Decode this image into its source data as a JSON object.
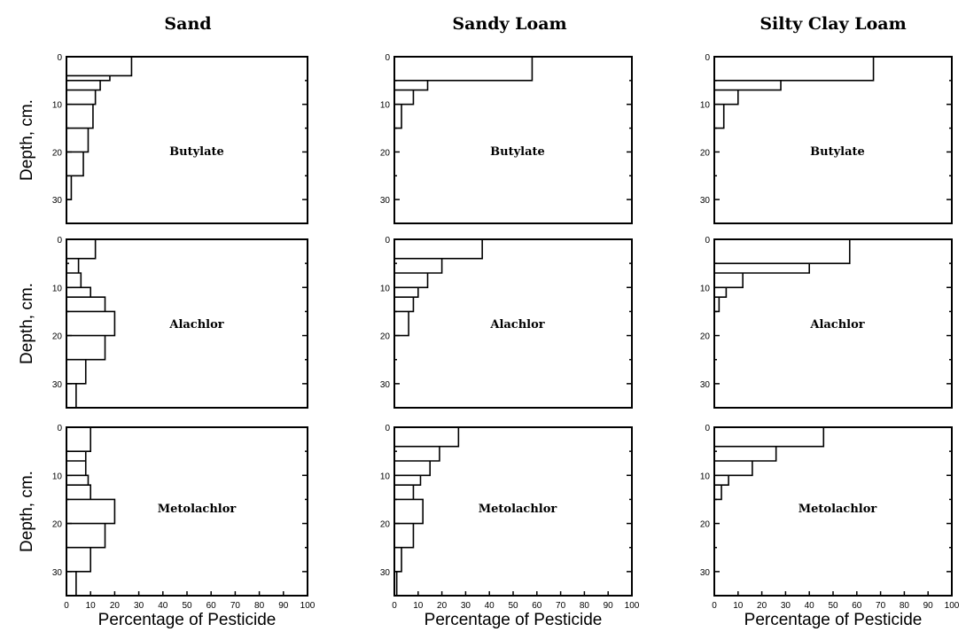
{
  "figure": {
    "y_axis_label": "Depth, cm.",
    "x_axis_label": "Percentage of Pesticide"
  },
  "chart_data": [
    {
      "type": "line",
      "soil": "Sand",
      "pesticide": "Butylate",
      "xlim": [
        0,
        100
      ],
      "ylim": [
        0,
        35
      ],
      "ylabel": "Depth, cm.",
      "xlabel": "",
      "xticks": [],
      "yticks": [
        0,
        10,
        20,
        30
      ],
      "depths": [
        0,
        4,
        5,
        7,
        10,
        15,
        20,
        25,
        30,
        35
      ],
      "values": [
        27,
        18,
        14,
        12,
        11,
        9,
        7,
        2,
        0
      ]
    },
    {
      "type": "line",
      "soil": "Sandy Loam",
      "pesticide": "Butylate",
      "xlim": [
        0,
        100
      ],
      "ylim": [
        0,
        35
      ],
      "ylabel": "",
      "xlabel": "",
      "xticks": [],
      "yticks": [
        0,
        10,
        20,
        30
      ],
      "depths": [
        0,
        5,
        7,
        10,
        15,
        20,
        25,
        30,
        35
      ],
      "values": [
        58,
        14,
        8,
        3,
        0,
        0,
        0,
        0
      ]
    },
    {
      "type": "line",
      "soil": "Silty Clay Loam",
      "pesticide": "Butylate",
      "xlim": [
        0,
        100
      ],
      "ylim": [
        0,
        35
      ],
      "ylabel": "",
      "xlabel": "",
      "xticks": [],
      "yticks": [
        0,
        10,
        20,
        30
      ],
      "depths": [
        0,
        5,
        7,
        10,
        15,
        20,
        25,
        30,
        35
      ],
      "values": [
        67,
        28,
        10,
        4,
        0,
        0,
        0,
        0
      ]
    },
    {
      "type": "line",
      "soil": "Sand",
      "pesticide": "Alachlor",
      "xlim": [
        0,
        100
      ],
      "ylim": [
        0,
        35
      ],
      "ylabel": "Depth, cm.",
      "xlabel": "",
      "xticks": [],
      "yticks": [
        0,
        10,
        20,
        30
      ],
      "depths": [
        0,
        4,
        7,
        10,
        12,
        15,
        20,
        25,
        30,
        35
      ],
      "values": [
        12,
        5,
        6,
        10,
        16,
        20,
        16,
        8,
        4
      ]
    },
    {
      "type": "line",
      "soil": "Sandy Loam",
      "pesticide": "Alachlor",
      "xlim": [
        0,
        100
      ],
      "ylim": [
        0,
        35
      ],
      "ylabel": "",
      "xlabel": "",
      "xticks": [],
      "yticks": [
        0,
        10,
        20,
        30
      ],
      "depths": [
        0,
        4,
        7,
        10,
        12,
        15,
        20,
        25,
        30,
        35
      ],
      "values": [
        37,
        20,
        14,
        10,
        8,
        6,
        0,
        0,
        0
      ]
    },
    {
      "type": "line",
      "soil": "Silty Clay Loam",
      "pesticide": "Alachlor",
      "xlim": [
        0,
        100
      ],
      "ylim": [
        0,
        35
      ],
      "ylabel": "",
      "xlabel": "",
      "xticks": [],
      "yticks": [
        0,
        10,
        20,
        30
      ],
      "depths": [
        0,
        5,
        7,
        10,
        12,
        15,
        20,
        25,
        30,
        35
      ],
      "values": [
        57,
        40,
        12,
        5,
        2,
        0,
        0,
        0,
        0
      ]
    },
    {
      "type": "line",
      "soil": "Sand",
      "pesticide": "Metolachlor",
      "xlim": [
        0,
        100
      ],
      "ylim": [
        0,
        35
      ],
      "ylabel": "Depth, cm.",
      "xlabel": "Percentage of Pesticide",
      "xticks": [
        0,
        10,
        20,
        30,
        40,
        50,
        60,
        70,
        80,
        90,
        100
      ],
      "yticks": [
        0,
        10,
        20,
        30
      ],
      "depths": [
        0,
        5,
        7,
        10,
        12,
        15,
        20,
        25,
        30,
        35
      ],
      "values": [
        10,
        8,
        8,
        9,
        10,
        20,
        16,
        10,
        4
      ]
    },
    {
      "type": "line",
      "soil": "Sandy Loam",
      "pesticide": "Metolachlor",
      "xlim": [
        0,
        100
      ],
      "ylim": [
        0,
        35
      ],
      "ylabel": "",
      "xlabel": "Percentage of Pesticide",
      "xticks": [
        0,
        10,
        20,
        30,
        40,
        50,
        60,
        70,
        80,
        90,
        100
      ],
      "yticks": [
        0,
        10,
        20,
        30
      ],
      "depths": [
        0,
        4,
        7,
        10,
        12,
        15,
        20,
        25,
        30,
        35
      ],
      "values": [
        27,
        19,
        15,
        11,
        8,
        12,
        8,
        3,
        1
      ]
    },
    {
      "type": "line",
      "soil": "Silty Clay Loam",
      "pesticide": "Metolachlor",
      "xlim": [
        0,
        100
      ],
      "ylim": [
        0,
        35
      ],
      "ylabel": "",
      "xlabel": "Percentage of Pesticide",
      "xticks": [
        0,
        10,
        20,
        30,
        40,
        50,
        60,
        70,
        80,
        90,
        100
      ],
      "yticks": [
        0,
        10,
        20,
        30
      ],
      "depths": [
        0,
        4,
        7,
        10,
        12,
        15,
        20,
        25,
        30,
        35
      ],
      "values": [
        46,
        26,
        16,
        6,
        3,
        0,
        0,
        0,
        0
      ]
    }
  ]
}
